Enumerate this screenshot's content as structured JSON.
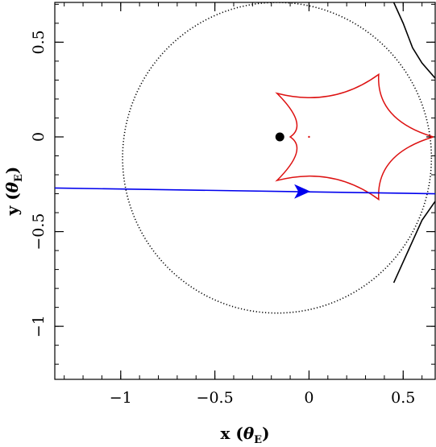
{
  "chart_data": {
    "type": "line",
    "xlabel": {
      "main": "x",
      "symbol": "θ",
      "sub": "E"
    },
    "ylabel": {
      "main": "y",
      "symbol": "θ",
      "sub": "E"
    },
    "xlim": [
      -1.35,
      0.67
    ],
    "ylim": [
      -1.28,
      0.71
    ],
    "xticks": [
      -1,
      -0.5,
      0,
      0.5
    ],
    "xtick_labels": [
      "−1",
      "−0.5",
      "0",
      "0.5"
    ],
    "yticks": [
      -1,
      -0.5,
      0,
      0.5
    ],
    "ytick_labels": [
      "−1",
      "−0.5",
      "0",
      "0.5"
    ],
    "grid": false,
    "series": [
      {
        "style": "dotted",
        "color": "#000000",
        "shape": "circle",
        "center": [
          -0.17,
          -0.11
        ],
        "radius": 0.82
      },
      {
        "style": "solid",
        "color": "#000000",
        "x": [
          0.45,
          0.5,
          0.55,
          0.6,
          0.67
        ],
        "y": [
          0.71,
          0.6,
          0.47,
          0.39,
          0.31
        ]
      },
      {
        "style": "solid",
        "color": "#000000",
        "x": [
          0.67,
          0.6,
          0.55,
          0.5,
          0.45
        ],
        "y": [
          -0.34,
          -0.44,
          -0.55,
          -0.66,
          -0.77
        ]
      },
      {
        "style": "solid",
        "color": "#dd1111",
        "shape": "caustic",
        "cusps_x": [
          0.66,
          0.37,
          -0.17,
          -0.1,
          -0.17,
          0.37
        ],
        "cusps_y": [
          0.0,
          0.33,
          0.23,
          0.0,
          -0.23,
          -0.33
        ]
      },
      {
        "style": "solid",
        "color": "#0000ee",
        "x": [
          -1.35,
          0.67
        ],
        "y": [
          -0.27,
          -0.3
        ]
      }
    ],
    "markers": [
      {
        "type": "dot",
        "x": -0.155,
        "y": 0.0,
        "color": "#000000"
      },
      {
        "type": "arrow",
        "x": -0.04,
        "y": -0.288,
        "direction": "right",
        "color": "#0000ee"
      },
      {
        "type": "small-dot",
        "x": 0.0,
        "y": 0.0,
        "color": "#dd1111"
      }
    ]
  }
}
